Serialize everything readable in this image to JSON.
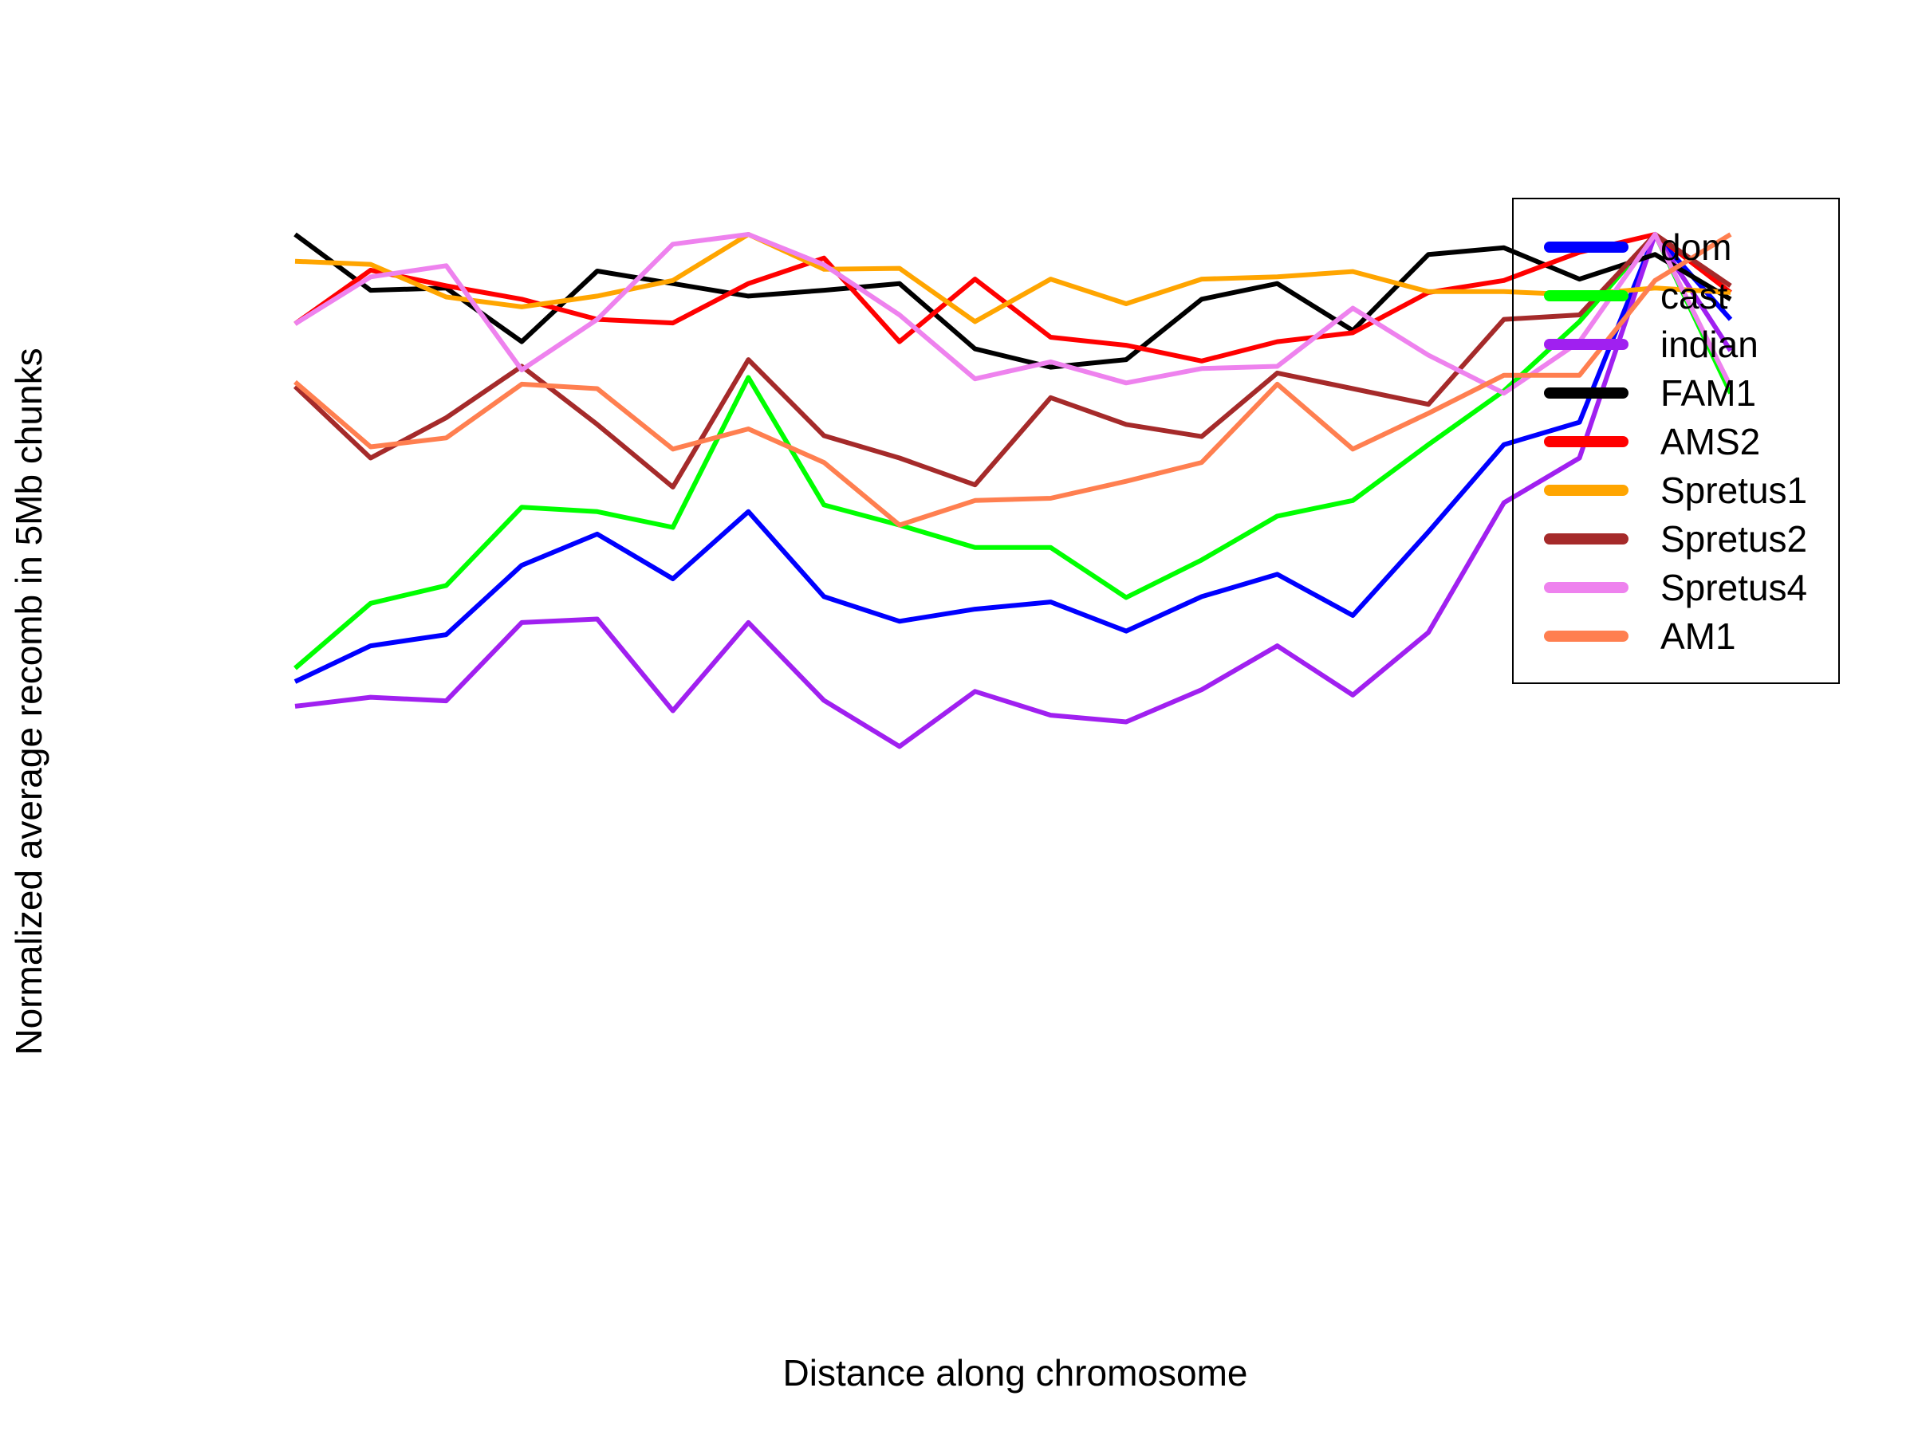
{
  "chart_data": {
    "type": "line",
    "title": "",
    "xlabel": "Distance along chromosome",
    "ylabel": "Normalized average recomb in 5Mb chunks",
    "axes_shown": false,
    "grid": false,
    "legend_position": "top-right",
    "x": [
      1,
      2,
      3,
      4,
      5,
      6,
      7,
      8,
      9,
      10,
      11,
      12,
      13,
      14,
      15,
      16,
      17,
      18,
      19,
      20
    ],
    "xlim": [
      0.5,
      20.5
    ],
    "ylim": [
      -0.4,
      1.1
    ],
    "series": [
      {
        "name": "dom",
        "color": "#0000FF",
        "values": [
          0.0,
          0.08,
          0.105,
          0.26,
          0.33,
          0.23,
          0.38,
          0.19,
          0.135,
          0.162,
          0.178,
          0.113,
          0.19,
          0.24,
          0.148,
          0.335,
          0.53,
          0.58,
          1.0,
          0.81
        ]
      },
      {
        "name": "cast",
        "color": "#00FF00",
        "values": [
          0.03,
          0.175,
          0.215,
          0.39,
          0.38,
          0.345,
          0.68,
          0.395,
          0.35,
          0.3,
          0.3,
          0.188,
          0.272,
          0.37,
          0.405,
          0.53,
          0.65,
          0.805,
          1.0,
          0.645
        ]
      },
      {
        "name": "indian",
        "color": "#A020F0",
        "values": [
          -0.055,
          -0.035,
          -0.043,
          0.132,
          0.14,
          -0.065,
          0.132,
          -0.042,
          -0.145,
          -0.022,
          -0.075,
          -0.09,
          -0.018,
          0.08,
          -0.03,
          0.11,
          0.4,
          0.5,
          1.0,
          0.74
        ]
      },
      {
        "name": "FAM1",
        "color": "#000000",
        "values": [
          1.0,
          0.875,
          0.88,
          0.76,
          0.918,
          0.89,
          0.862,
          0.875,
          0.89,
          0.744,
          0.703,
          0.72,
          0.855,
          0.89,
          0.785,
          0.955,
          0.97,
          0.9,
          0.955,
          0.855
        ]
      },
      {
        "name": "AMS2",
        "color": "#FF0000",
        "values": [
          0.8,
          0.92,
          0.885,
          0.855,
          0.81,
          0.802,
          0.89,
          0.947,
          0.76,
          0.9,
          0.77,
          0.752,
          0.717,
          0.76,
          0.78,
          0.87,
          0.897,
          0.96,
          1.0,
          0.87
        ]
      },
      {
        "name": "Spretus1",
        "color": "#FFA500",
        "values": [
          0.94,
          0.933,
          0.86,
          0.838,
          0.862,
          0.897,
          1.0,
          0.922,
          0.924,
          0.805,
          0.9,
          0.845,
          0.9,
          0.905,
          0.917,
          0.872,
          0.872,
          0.865,
          0.88,
          0.87
        ]
      },
      {
        "name": "Spretus2",
        "color": "#A52A2A",
        "values": [
          0.66,
          0.5,
          0.59,
          0.705,
          0.575,
          0.435,
          0.72,
          0.55,
          0.5,
          0.44,
          0.635,
          0.575,
          0.548,
          0.69,
          0.655,
          0.62,
          0.81,
          0.82,
          1.0,
          0.885
        ]
      },
      {
        "name": "Spretus4",
        "color": "#EE82EE",
        "values": [
          0.8,
          0.905,
          0.93,
          0.697,
          0.81,
          0.978,
          1.0,
          0.932,
          0.82,
          0.677,
          0.715,
          0.668,
          0.7,
          0.705,
          0.835,
          0.73,
          0.645,
          0.76,
          1.0,
          0.66
        ]
      },
      {
        "name": "AM1",
        "color": "#FF7F50",
        "values": [
          0.67,
          0.525,
          0.545,
          0.665,
          0.655,
          0.52,
          0.565,
          0.49,
          0.35,
          0.405,
          0.41,
          0.448,
          0.49,
          0.665,
          0.52,
          0.6,
          0.685,
          0.685,
          0.897,
          1.0
        ]
      }
    ]
  }
}
